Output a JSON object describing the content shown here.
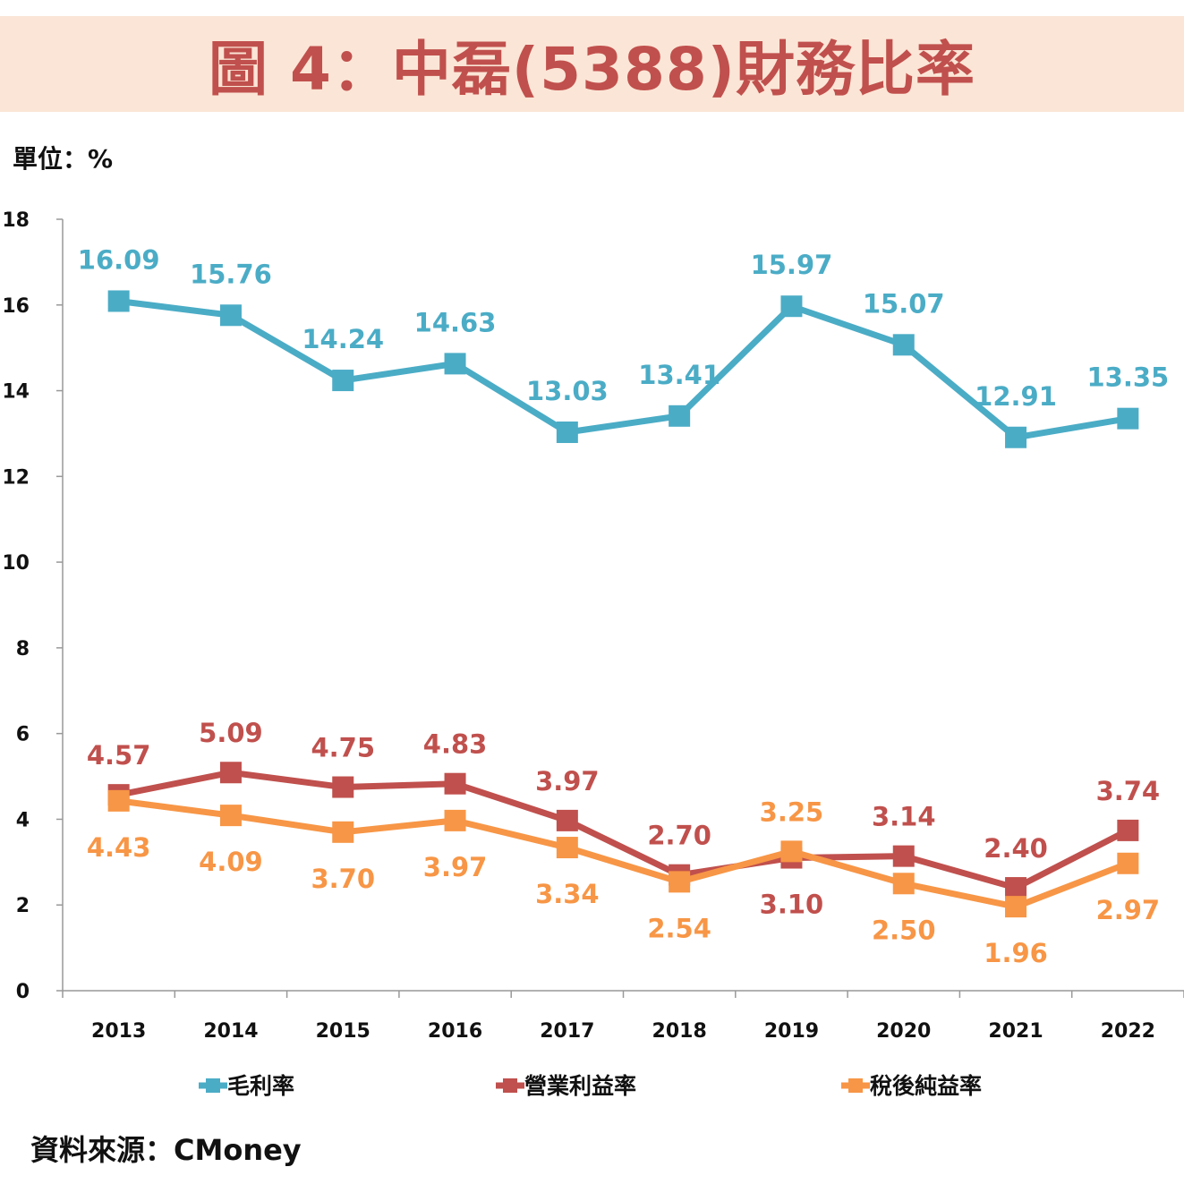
{
  "title": "圖 4：中磊(5388)財務比率",
  "unit_label": "單位：%",
  "source": "資料來源：CMoney",
  "chart_data": {
    "type": "line",
    "title": "圖 4：中磊(5388)財務比率",
    "ylabel": "單位：%",
    "categories": [
      "2013",
      "2014",
      "2015",
      "2016",
      "2017",
      "2018",
      "2019",
      "2020",
      "2021",
      "2022"
    ],
    "ylim": [
      0,
      18
    ],
    "yticks": [
      "0",
      "2",
      "4",
      "6",
      "8",
      "10",
      "12",
      "14",
      "16",
      "18"
    ],
    "grid": false,
    "legend": "bottom",
    "series": [
      {
        "name": "毛利率",
        "color": "#4BACC6",
        "values": [
          16.09,
          15.76,
          14.24,
          14.63,
          13.03,
          13.41,
          15.97,
          15.07,
          12.91,
          13.35
        ],
        "labels": [
          "16.09",
          "15.76",
          "14.24",
          "14.63",
          "13.03",
          "13.41",
          "15.97",
          "15.07",
          "12.91",
          "13.35"
        ]
      },
      {
        "name": "營業利益率",
        "color": "#C0504D",
        "values": [
          4.57,
          5.09,
          4.75,
          4.83,
          3.97,
          2.7,
          3.1,
          3.14,
          2.4,
          3.74
        ],
        "labels": [
          "4.57",
          "5.09",
          "4.75",
          "4.83",
          "3.97",
          "2.70",
          "3.10",
          "3.14",
          "2.40",
          "3.74"
        ]
      },
      {
        "name": "稅後純益率",
        "color": "#F79646",
        "values": [
          4.43,
          4.09,
          3.7,
          3.97,
          3.34,
          2.54,
          3.25,
          2.5,
          1.96,
          2.97
        ],
        "labels": [
          "4.43",
          "4.09",
          "3.70",
          "3.97",
          "3.34",
          "2.54",
          "3.25",
          "2.50",
          "1.96",
          "2.97"
        ]
      }
    ]
  }
}
